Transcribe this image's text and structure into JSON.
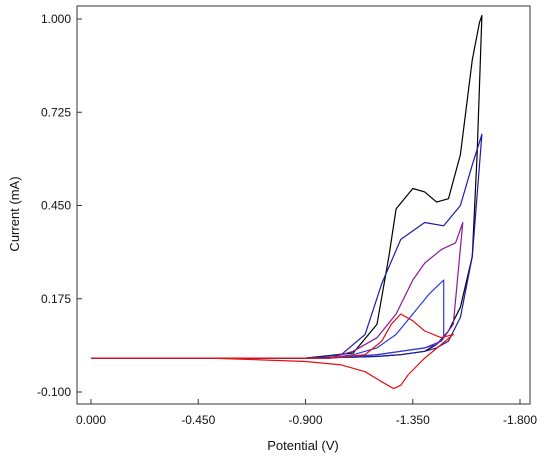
{
  "chart_data": {
    "type": "line",
    "title": "",
    "xlabel": "Potential (V)",
    "ylabel": "Current (mA)",
    "xlim": [
      0.0,
      -1.8
    ],
    "ylim": [
      -0.1,
      1.0
    ],
    "x_ticks": [
      "0.000",
      "-0.450",
      "-0.900",
      "-1.350",
      "-1.800"
    ],
    "x_tick_values": [
      0.0,
      -0.45,
      -0.9,
      -1.35,
      -1.8
    ],
    "y_ticks": [
      "1.000",
      "0.725",
      "0.450",
      "0.175",
      "-0.100"
    ],
    "y_tick_values": [
      1.0,
      0.725,
      0.45,
      0.175,
      -0.1
    ],
    "grid": false,
    "legend": "none",
    "series": [
      {
        "color": "#000000",
        "x": [
          0.0,
          -0.9,
          -1.1,
          -1.2,
          -1.25,
          -1.28,
          -1.35,
          -1.4,
          -1.45,
          -1.5,
          -1.55,
          -1.6,
          -1.63,
          -1.64,
          -1.62,
          -1.6,
          -1.55,
          -1.5,
          -1.45,
          -1.4,
          -1.3,
          -1.2,
          -1.1,
          -1.0,
          -0.9,
          0.0
        ],
        "y": [
          0.0,
          0.0,
          0.015,
          0.1,
          0.3,
          0.44,
          0.5,
          0.49,
          0.46,
          0.47,
          0.6,
          0.88,
          0.99,
          1.01,
          0.6,
          0.3,
          0.15,
          0.08,
          0.04,
          0.02,
          0.01,
          0.005,
          0.003,
          0.002,
          0.0,
          0.0
        ]
      },
      {
        "color": "#1a1aa8",
        "x": [
          0.0,
          -0.9,
          -1.05,
          -1.15,
          -1.22,
          -1.3,
          -1.4,
          -1.48,
          -1.55,
          -1.6,
          -1.64,
          -1.6,
          -1.55,
          -1.5,
          -1.45,
          -1.4,
          -1.3,
          -1.2,
          -1.05,
          -0.9,
          0.0
        ],
        "y": [
          0.0,
          0.0,
          0.01,
          0.07,
          0.22,
          0.35,
          0.4,
          0.39,
          0.45,
          0.57,
          0.66,
          0.3,
          0.12,
          0.05,
          0.03,
          0.02,
          0.01,
          0.005,
          0.002,
          0.0,
          0.0
        ]
      },
      {
        "color": "#8b1a9a",
        "x": [
          0.0,
          -1.0,
          -1.1,
          -1.2,
          -1.28,
          -1.35,
          -1.4,
          -1.47,
          -1.53,
          -1.56,
          -1.52,
          -1.47,
          -1.4,
          -1.3,
          -1.2,
          -1.1,
          -1.0,
          0.0
        ],
        "y": [
          0.0,
          0.0,
          0.02,
          0.06,
          0.13,
          0.23,
          0.28,
          0.32,
          0.34,
          0.4,
          0.1,
          0.05,
          0.03,
          0.02,
          0.01,
          0.005,
          0.0,
          0.0
        ]
      },
      {
        "color": "#2a3ad6",
        "x": [
          0.0,
          -1.0,
          -1.1,
          -1.2,
          -1.28,
          -1.35,
          -1.42,
          -1.48,
          -1.48,
          -1.45,
          -1.4,
          -1.3,
          -1.2,
          -1.1,
          -1.0,
          0.0
        ],
        "y": [
          0.0,
          0.0,
          0.01,
          0.03,
          0.07,
          0.13,
          0.19,
          0.23,
          0.06,
          0.04,
          0.03,
          0.02,
          0.01,
          0.005,
          0.0,
          0.0
        ]
      },
      {
        "color": "#e01010",
        "x": [
          0.0,
          -1.0,
          -1.15,
          -1.22,
          -1.26,
          -1.3,
          -1.35,
          -1.4,
          -1.47,
          -1.52,
          -1.47,
          -1.4,
          -1.33,
          -1.3,
          -1.27,
          -1.22,
          -1.15,
          -1.05,
          -0.9,
          -0.5,
          0.0
        ],
        "y": [
          0.0,
          0.0,
          0.01,
          0.05,
          0.1,
          0.13,
          0.11,
          0.08,
          0.06,
          0.07,
          0.04,
          0.0,
          -0.05,
          -0.08,
          -0.09,
          -0.07,
          -0.04,
          -0.02,
          -0.01,
          0.0,
          0.0
        ]
      }
    ]
  }
}
